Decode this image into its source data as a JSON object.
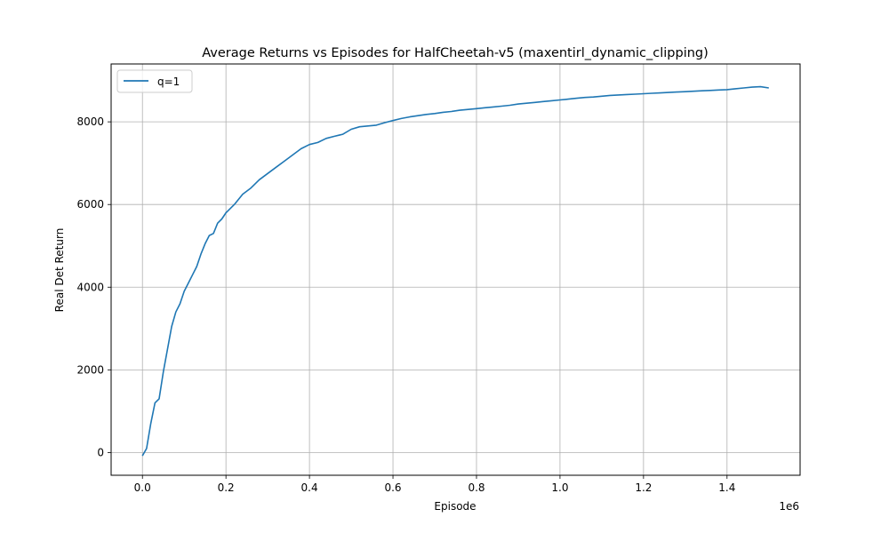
{
  "chart_data": {
    "type": "line",
    "title": "Average Returns vs Episodes for HalfCheetah-v5 (maxentirl_dynamic_clipping)",
    "xlabel": "Episode",
    "ylabel": "Real Det Return",
    "x_scale_label": "1e6",
    "x_scale": 1000000,
    "xlim": [
      -0.075,
      1.575
    ],
    "ylim": [
      -550,
      9400
    ],
    "x_ticks": [
      0.0,
      0.2,
      0.4,
      0.6,
      0.8,
      1.0,
      1.2,
      1.4
    ],
    "x_tick_labels": [
      "0.0",
      "0.2",
      "0.4",
      "0.6",
      "0.8",
      "1.0",
      "1.2",
      "1.4"
    ],
    "y_ticks": [
      0,
      2000,
      4000,
      6000,
      8000
    ],
    "y_tick_labels": [
      "0",
      "2000",
      "4000",
      "6000",
      "8000"
    ],
    "grid": true,
    "legend": "upper left",
    "series": [
      {
        "name": "q=1",
        "color": "#1f77b4",
        "x": [
          0.0,
          0.01,
          0.02,
          0.03,
          0.04,
          0.05,
          0.06,
          0.07,
          0.08,
          0.09,
          0.1,
          0.11,
          0.12,
          0.13,
          0.14,
          0.15,
          0.16,
          0.17,
          0.18,
          0.19,
          0.2,
          0.22,
          0.24,
          0.26,
          0.28,
          0.3,
          0.32,
          0.34,
          0.36,
          0.38,
          0.4,
          0.42,
          0.44,
          0.46,
          0.48,
          0.5,
          0.52,
          0.54,
          0.56,
          0.58,
          0.6,
          0.62,
          0.64,
          0.66,
          0.68,
          0.7,
          0.72,
          0.74,
          0.76,
          0.78,
          0.8,
          0.82,
          0.84,
          0.86,
          0.88,
          0.9,
          0.92,
          0.94,
          0.96,
          0.98,
          1.0,
          1.02,
          1.04,
          1.06,
          1.08,
          1.1,
          1.12,
          1.14,
          1.16,
          1.18,
          1.2,
          1.22,
          1.24,
          1.26,
          1.28,
          1.3,
          1.32,
          1.34,
          1.36,
          1.38,
          1.4,
          1.42,
          1.44,
          1.46,
          1.48,
          1.5
        ],
        "y": [
          -80,
          100,
          700,
          1200,
          1300,
          1950,
          2500,
          3050,
          3400,
          3600,
          3900,
          4100,
          4300,
          4500,
          4800,
          5050,
          5250,
          5300,
          5550,
          5650,
          5800,
          6000,
          6250,
          6400,
          6600,
          6750,
          6900,
          7050,
          7200,
          7350,
          7450,
          7500,
          7600,
          7650,
          7700,
          7820,
          7880,
          7900,
          7920,
          7980,
          8030,
          8080,
          8120,
          8150,
          8180,
          8200,
          8230,
          8250,
          8280,
          8300,
          8320,
          8340,
          8360,
          8380,
          8400,
          8430,
          8450,
          8470,
          8490,
          8510,
          8530,
          8550,
          8570,
          8590,
          8600,
          8620,
          8640,
          8650,
          8660,
          8670,
          8680,
          8690,
          8700,
          8710,
          8720,
          8730,
          8740,
          8750,
          8760,
          8770,
          8780,
          8800,
          8820,
          8840,
          8850,
          8820
        ]
      }
    ]
  }
}
